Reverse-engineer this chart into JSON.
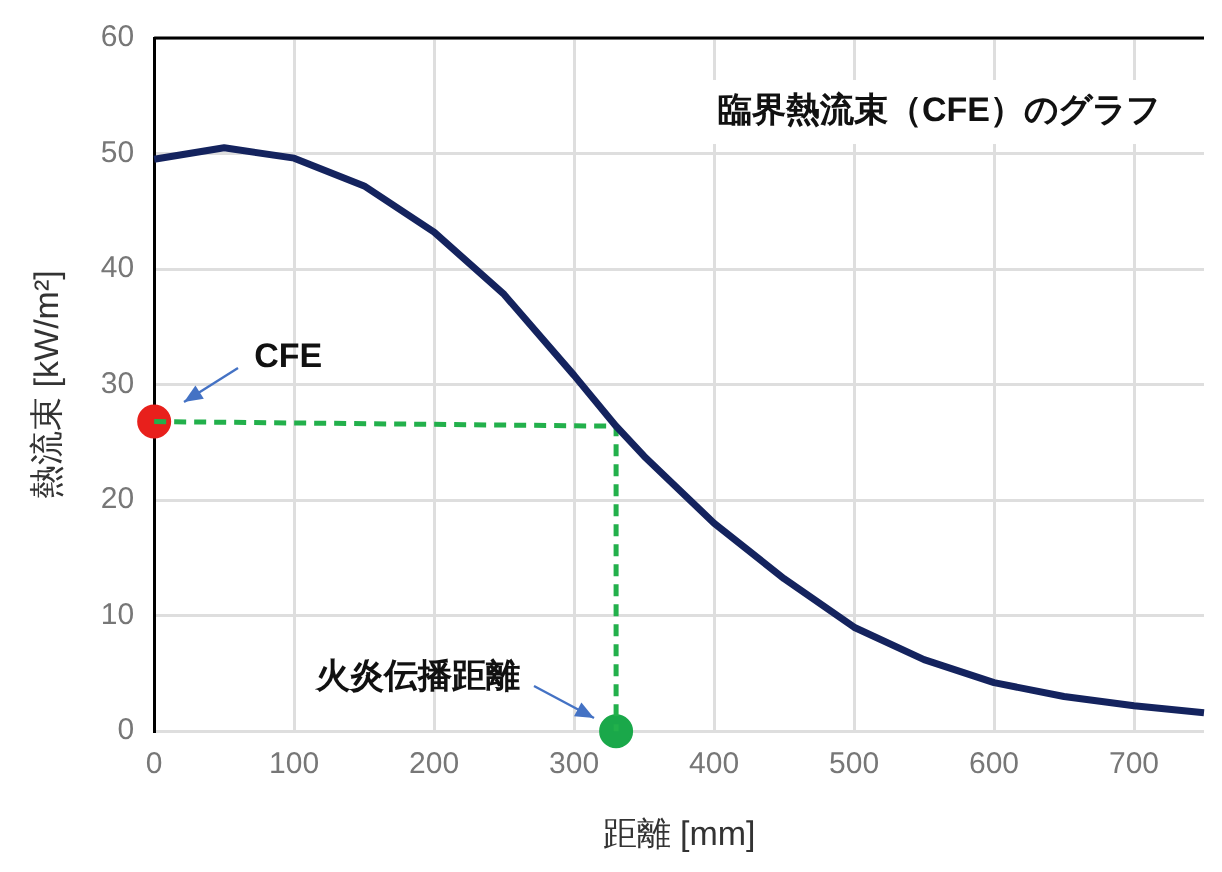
{
  "chart_data": {
    "type": "line",
    "title": "臨界熱流束（CFE）のグラフ",
    "xlabel": "距離 [mm]",
    "ylabel": "熱流束 [kW/m²]",
    "xlim": [
      0,
      750
    ],
    "xticks": [
      0,
      100,
      200,
      300,
      400,
      500,
      600,
      700
    ],
    "ylim": [
      0,
      60
    ],
    "yticks": [
      0,
      10,
      20,
      30,
      40,
      50,
      60
    ],
    "grid": true,
    "legend": false,
    "series": [
      {
        "color": "#14235e",
        "x": [
          0,
          50,
          100,
          150,
          200,
          250,
          300,
          330,
          350,
          400,
          450,
          500,
          550,
          600,
          650,
          700,
          750
        ],
        "values": [
          49.5,
          50.5,
          49.6,
          47.2,
          43.2,
          37.8,
          30.8,
          26.4,
          23.8,
          18,
          13.2,
          9,
          6.2,
          4.2,
          3,
          2.2,
          1.6
        ]
      },
      {
        "type": "line",
        "color": "#22b04b",
        "line_style": "dashed",
        "x": [
          0,
          330,
          330
        ],
        "values": [
          26.8,
          26.4,
          0
        ]
      },
      {
        "type": "scatter",
        "color": "#e8201c",
        "marker": "circle",
        "x": [
          0
        ],
        "values": [
          26.8
        ]
      },
      {
        "type": "scatter",
        "color": "#1aa84a",
        "marker": "circle",
        "x": [
          330
        ],
        "values": [
          0
        ]
      }
    ],
    "annotations": [
      "CFE",
      "火炎伝播距離"
    ]
  }
}
